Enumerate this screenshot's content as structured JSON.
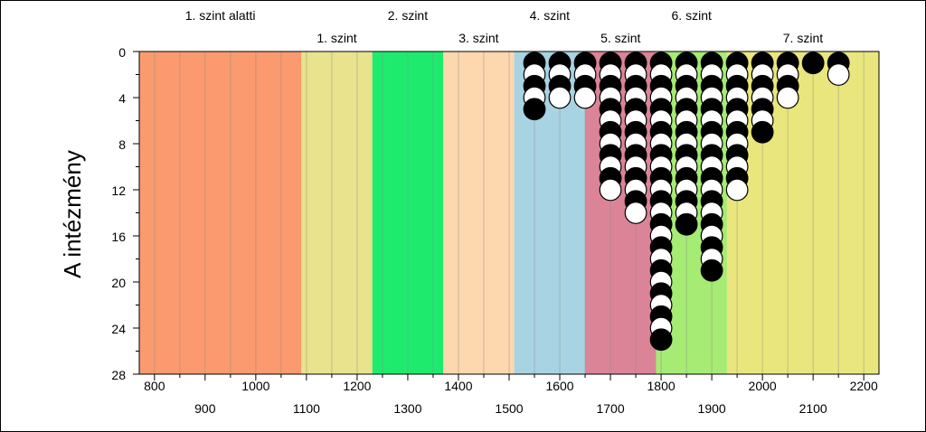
{
  "chart_data": {
    "type": "scatter",
    "title": "",
    "xlabel": "",
    "ylabel": "A intézmény",
    "xlim": [
      770,
      2230
    ],
    "ylim": [
      28,
      0
    ],
    "x_ticks_top_row": [
      "800",
      "1000",
      "1200",
      "1400",
      "1600",
      "1800",
      "2000",
      "2200"
    ],
    "x_ticks_bottom_row": [
      "900",
      "1100",
      "1300",
      "1500",
      "1700",
      "1900",
      "2100"
    ],
    "y_ticks": [
      "0",
      "4",
      "8",
      "12",
      "16",
      "20",
      "24",
      "28"
    ],
    "bands": [
      {
        "label": "1. szint alatti",
        "from": 770,
        "to": 1090,
        "color": "#FA9A6E"
      },
      {
        "label": "1. szint",
        "from": 1090,
        "to": 1230,
        "color": "#E8E38C"
      },
      {
        "label": "2. szint",
        "from": 1230,
        "to": 1370,
        "color": "#1EEB6E"
      },
      {
        "label": "3. szint",
        "from": 1370,
        "to": 1510,
        "color": "#FDD7AE"
      },
      {
        "label": "4. szint",
        "from": 1510,
        "to": 1650,
        "color": "#A8D3E2"
      },
      {
        "label": "5. szint",
        "from": 1650,
        "to": 1790,
        "color": "#DB8497"
      },
      {
        "label": "6. szint",
        "from": 1790,
        "to": 1930,
        "color": "#A6EB73"
      },
      {
        "label": "7. szint",
        "from": 1930,
        "to": 2230,
        "color": "#E9E67D"
      }
    ],
    "grid": "vertical lines every 50",
    "series": [
      {
        "x": 1550,
        "count": 5
      },
      {
        "x": 1600,
        "count": 4
      },
      {
        "x": 1650,
        "count": 4
      },
      {
        "x": 1700,
        "count": 12
      },
      {
        "x": 1750,
        "count": 14
      },
      {
        "x": 1800,
        "count": 25
      },
      {
        "x": 1850,
        "count": 15
      },
      {
        "x": 1900,
        "count": 19
      },
      {
        "x": 1950,
        "count": 12
      },
      {
        "x": 2000,
        "count": 7
      },
      {
        "x": 2050,
        "count": 4
      },
      {
        "x": 2100,
        "count": 1
      },
      {
        "x": 2150,
        "count": 2
      }
    ],
    "marker_colors": {
      "odd": "#000000",
      "even": "#ffffff"
    }
  }
}
